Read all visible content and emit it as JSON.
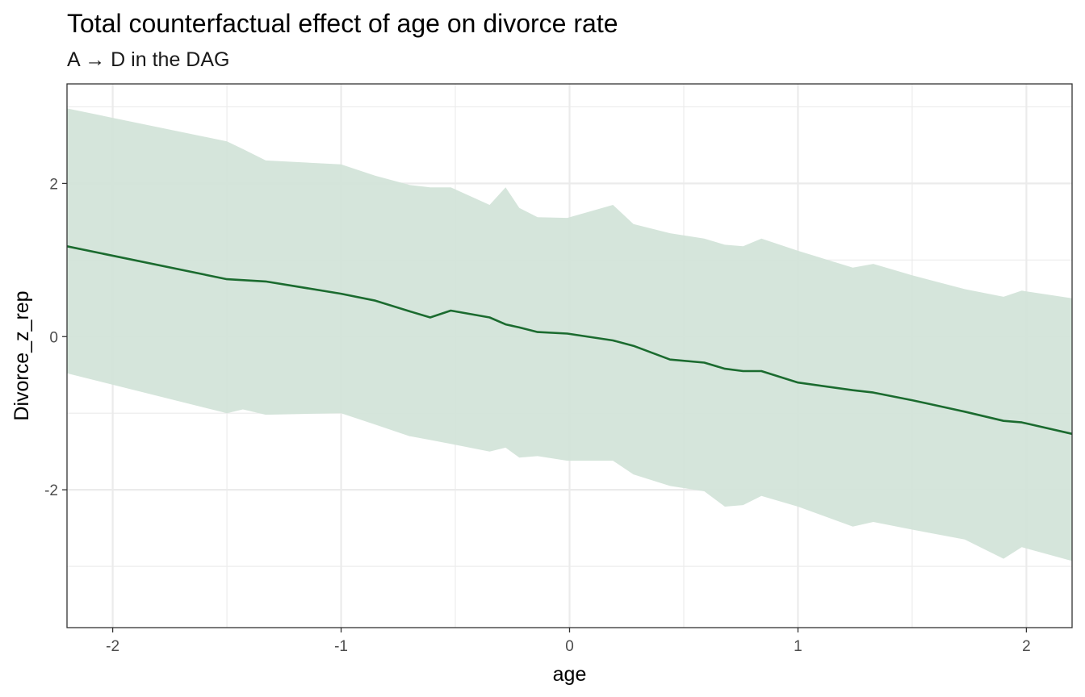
{
  "chart_data": {
    "type": "area",
    "title": "Total counterfactual effect of age on divorce rate",
    "subtitle": "A → D in the DAG",
    "xlabel": "age",
    "ylabel": "Divorce_z_rep",
    "xlim": [
      -2.2,
      2.2
    ],
    "ylim": [
      -3.8,
      3.3
    ],
    "x_ticks": [
      -2,
      -1,
      0,
      1,
      2
    ],
    "y_ticks": [
      -2,
      0,
      2
    ],
    "x_tick_labels": [
      "-2",
      "-1",
      "0",
      "1",
      "2"
    ],
    "y_tick_labels": [
      "-2",
      "0",
      "2"
    ],
    "grid": true,
    "colors": {
      "line": "#1b6b2f",
      "ribbon": "#d3e4d9",
      "panel_border": "#333333",
      "grid": "#ebebeb"
    },
    "series": [
      {
        "kind": "line",
        "x": [
          -2.2,
          -1.5,
          -1.33,
          -1.0,
          -0.85,
          -0.7,
          -0.61,
          -0.52,
          -0.35,
          -0.28,
          -0.22,
          -0.14,
          -0.01,
          0.19,
          0.28,
          0.44,
          0.59,
          0.68,
          0.76,
          0.84,
          1.0,
          1.24,
          1.33,
          1.5,
          1.73,
          1.9,
          1.98,
          2.2
        ],
        "y": [
          1.18,
          0.75,
          0.72,
          0.56,
          0.47,
          0.33,
          0.25,
          0.34,
          0.25,
          0.16,
          0.12,
          0.06,
          0.04,
          -0.05,
          -0.12,
          -0.3,
          -0.34,
          -0.42,
          -0.45,
          -0.45,
          -0.6,
          -0.7,
          -0.73,
          -0.83,
          -0.98,
          -1.1,
          -1.12,
          -1.27
        ]
      },
      {
        "kind": "ribbon",
        "x": [
          -2.2,
          -1.5,
          -1.43,
          -1.33,
          -1.0,
          -0.85,
          -0.7,
          -0.61,
          -0.52,
          -0.35,
          -0.28,
          -0.22,
          -0.14,
          -0.01,
          0.19,
          0.28,
          0.44,
          0.59,
          0.68,
          0.76,
          0.84,
          1.0,
          1.24,
          1.33,
          1.5,
          1.73,
          1.9,
          1.98,
          2.2
        ],
        "upper": [
          2.98,
          2.55,
          2.45,
          2.3,
          2.25,
          2.1,
          1.98,
          1.95,
          1.95,
          1.72,
          1.95,
          1.68,
          1.56,
          1.55,
          1.72,
          1.47,
          1.35,
          1.28,
          1.2,
          1.18,
          1.28,
          1.12,
          0.9,
          0.95,
          0.8,
          0.62,
          0.52,
          0.6,
          0.5
        ],
        "lower": [
          -0.48,
          -1.0,
          -0.95,
          -1.02,
          -1.0,
          -1.15,
          -1.3,
          -1.35,
          -1.4,
          -1.5,
          -1.45,
          -1.58,
          -1.56,
          -1.62,
          -1.62,
          -1.8,
          -1.95,
          -2.02,
          -2.22,
          -2.2,
          -2.08,
          -2.22,
          -2.48,
          -2.42,
          -2.52,
          -2.65,
          -2.9,
          -2.75,
          -2.93
        ]
      }
    ]
  }
}
